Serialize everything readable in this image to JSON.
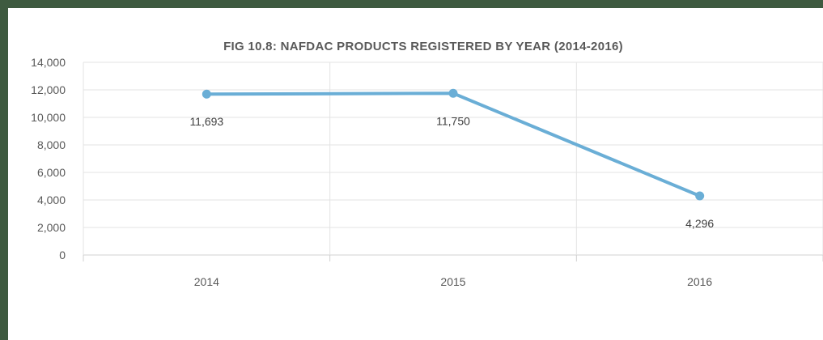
{
  "chart_data": {
    "type": "line",
    "title": "FIG 10.8: NAFDAC PRODUCTS  REGISTERED  BY YEAR  (2014-2016)",
    "categories": [
      "2014",
      "2015",
      "2016"
    ],
    "series": [
      {
        "values": [
          11693,
          11750,
          4296
        ],
        "labels": [
          "11,693",
          "11,750",
          "4,296"
        ]
      }
    ],
    "ylim": [
      0,
      14000
    ],
    "yticks": [
      0,
      2000,
      4000,
      6000,
      8000,
      10000,
      12000,
      14000
    ],
    "ytick_labels": [
      "0",
      "2,000",
      "4,000",
      "6,000",
      "8,000",
      "10,000",
      "12,000",
      "14,000"
    ],
    "grid": true,
    "line_color": "#6aaed6"
  }
}
